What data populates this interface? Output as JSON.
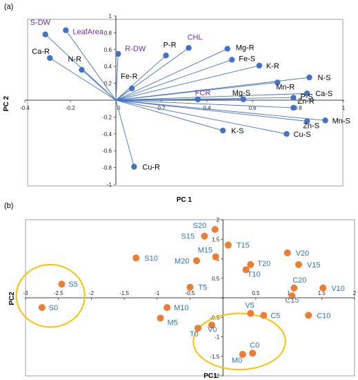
{
  "panels": [
    {
      "label": "(a)"
    },
    {
      "label": "(b)"
    }
  ],
  "chart_data": [
    {
      "type": "biplot",
      "xlabel": "PC 1",
      "ylabel": "PC 2",
      "xlim": [
        -0.4,
        1
      ],
      "ylim": [
        -1,
        1
      ],
      "x_ticks": [
        -0.4,
        -0.2,
        0,
        0.2,
        0.4,
        0.6,
        0.8,
        1
      ],
      "y_ticks": [
        -1,
        -0.8,
        -0.6,
        -0.4,
        -0.2,
        0,
        0.2,
        0.4,
        0.6,
        0.8,
        1
      ],
      "x_tick_labels": [
        "-0.4",
        "-0.2",
        "0",
        "0.2",
        "0.4",
        "0.6",
        "0.8",
        "1"
      ],
      "y_tick_labels": [
        "-1",
        "-0.8",
        "-0.6",
        "-0.4",
        "-0.2",
        "0",
        "0.2",
        "0.4",
        "0.6",
        "0.8",
        "1"
      ],
      "arrow_color": "#4472C4",
      "highlight_label_color": "#7030A0",
      "label_color": "#000000",
      "loadings": [
        {
          "name": "S-DW",
          "x": -0.31,
          "y": 0.78,
          "highlight": true
        },
        {
          "name": "LeafArea",
          "x": -0.22,
          "y": 0.83,
          "highlight": true
        },
        {
          "name": "Ca-R",
          "x": -0.29,
          "y": 0.5,
          "highlight": false
        },
        {
          "name": "N-R",
          "x": -0.15,
          "y": 0.36,
          "highlight": false
        },
        {
          "name": "R-DW",
          "x": 0.01,
          "y": 0.55,
          "highlight": true
        },
        {
          "name": "P-R",
          "x": 0.22,
          "y": 0.53,
          "highlight": false
        },
        {
          "name": "CHL",
          "x": 0.32,
          "y": 0.62,
          "highlight": true
        },
        {
          "name": "Mg-R",
          "x": 0.49,
          "y": 0.61,
          "highlight": false
        },
        {
          "name": "Fe-S",
          "x": 0.51,
          "y": 0.48,
          "highlight": false
        },
        {
          "name": "K-R",
          "x": 0.63,
          "y": 0.41,
          "highlight": false
        },
        {
          "name": "Fe-R",
          "x": 0.07,
          "y": 0.14,
          "highlight": false
        },
        {
          "name": "Mn-R",
          "x": 0.71,
          "y": 0.21,
          "highlight": false
        },
        {
          "name": "N-S",
          "x": 0.85,
          "y": 0.27,
          "highlight": false
        },
        {
          "name": "Ca-S",
          "x": 0.84,
          "y": 0.08,
          "highlight": false
        },
        {
          "name": "P-S",
          "x": 0.78,
          "y": 0.03,
          "highlight": false
        },
        {
          "name": "FCR",
          "x": 0.36,
          "y": 0.01,
          "highlight": true
        },
        {
          "name": "Mg-S",
          "x": 0.56,
          "y": 0.01,
          "highlight": false
        },
        {
          "name": "Zn-R",
          "x": 0.78,
          "y": -0.09,
          "highlight": false
        },
        {
          "name": "Zn-S",
          "x": 0.84,
          "y": -0.25,
          "highlight": false
        },
        {
          "name": "Mn-S",
          "x": 0.92,
          "y": -0.24,
          "highlight": false
        },
        {
          "name": "K-S",
          "x": 0.47,
          "y": -0.36,
          "highlight": false
        },
        {
          "name": "Cu-S",
          "x": 0.75,
          "y": -0.4,
          "highlight": false
        },
        {
          "name": "Cu-R",
          "x": 0.08,
          "y": -0.79,
          "highlight": false
        }
      ]
    },
    {
      "type": "scatter",
      "xlabel": "PC1",
      "ylabel": "PC2",
      "xlim": [
        -3,
        2
      ],
      "ylim": [
        -2,
        2
      ],
      "x_ticks": [
        -3,
        -2.5,
        -2,
        -1.5,
        -1,
        -0.5,
        0,
        0.5,
        1,
        1.5,
        2
      ],
      "y_ticks": [
        -2,
        -1.5,
        -1,
        -0.5,
        0,
        0.5,
        1,
        1.5,
        2
      ],
      "x_tick_labels": [
        "-3",
        "-2.5",
        "-2",
        "-1.5",
        "-1",
        "-0.5",
        "0",
        "0.5",
        "1",
        "1.5",
        "2"
      ],
      "y_tick_labels": [
        "-2",
        "-1.5",
        "-1",
        "-0.5",
        "0",
        "0.5",
        "1",
        "1.5",
        "2"
      ],
      "point_color": "#ED7D31",
      "label_color": "#2E75B6",
      "ellipse_color": "#FFC000",
      "points": [
        {
          "name": "S20",
          "x": -0.12,
          "y": 1.75
        },
        {
          "name": "S15",
          "x": -0.28,
          "y": 1.58
        },
        {
          "name": "T15",
          "x": 0.08,
          "y": 1.35
        },
        {
          "name": "M15",
          "x": -0.11,
          "y": 1.05
        },
        {
          "name": "M20",
          "x": -0.4,
          "y": 0.95
        },
        {
          "name": "S10",
          "x": -1.32,
          "y": 1.02
        },
        {
          "name": "T20",
          "x": 0.42,
          "y": 0.85
        },
        {
          "name": "T10",
          "x": 0.35,
          "y": 0.72
        },
        {
          "name": "V20",
          "x": 0.98,
          "y": 1.15
        },
        {
          "name": "V15",
          "x": 1.15,
          "y": 0.85
        },
        {
          "name": "C20",
          "x": 1.08,
          "y": 0.25
        },
        {
          "name": "V10",
          "x": 1.52,
          "y": 0.25
        },
        {
          "name": "C15",
          "x": 1.05,
          "y": 0.05
        },
        {
          "name": "C10",
          "x": 1.3,
          "y": -0.45
        },
        {
          "name": "S5",
          "x": -2.45,
          "y": 0.35
        },
        {
          "name": "S0",
          "x": -2.75,
          "y": -0.25
        },
        {
          "name": "T5",
          "x": -0.5,
          "y": 0.27
        },
        {
          "name": "M10",
          "x": -0.85,
          "y": -0.25
        },
        {
          "name": "M5",
          "x": -0.95,
          "y": -0.52
        },
        {
          "name": "V5",
          "x": 0.42,
          "y": -0.4
        },
        {
          "name": "C5",
          "x": 0.62,
          "y": -0.45
        },
        {
          "name": "V0",
          "x": -0.17,
          "y": -0.7
        },
        {
          "name": "T0",
          "x": -0.38,
          "y": -0.78
        },
        {
          "name": "C0",
          "x": 0.45,
          "y": -1.42
        },
        {
          "name": "M0",
          "x": 0.3,
          "y": -1.45
        }
      ],
      "ellipses": [
        {
          "cx": -2.62,
          "cy": 0.05,
          "rx": 0.52,
          "ry": 0.8
        },
        {
          "cx": 0.25,
          "cy": -1.12,
          "rx": 0.7,
          "ry": 0.72
        }
      ]
    }
  ]
}
